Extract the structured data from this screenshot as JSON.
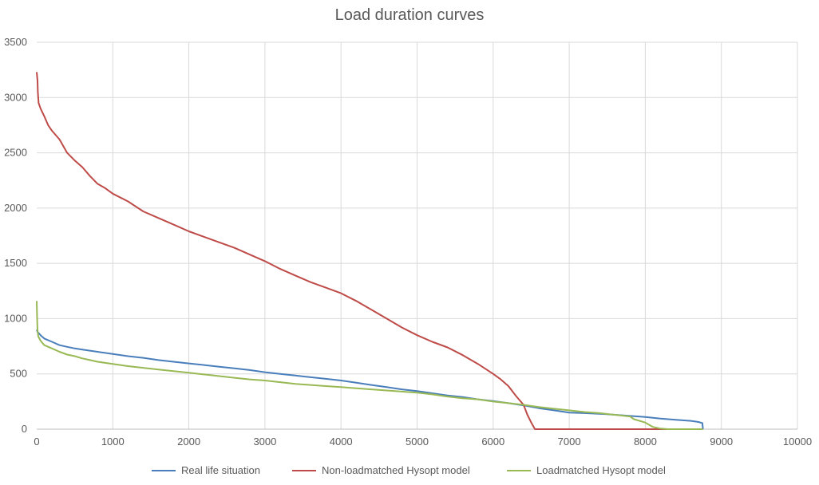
{
  "chart_data": {
    "type": "line",
    "title": "Load duration curves",
    "xlabel": "",
    "ylabel": "",
    "xlim": [
      0,
      10000
    ],
    "ylim": [
      0,
      3500
    ],
    "x_ticks": [
      0,
      1000,
      2000,
      3000,
      4000,
      5000,
      6000,
      7000,
      8000,
      9000,
      10000
    ],
    "y_ticks": [
      0,
      500,
      1000,
      1500,
      2000,
      2500,
      3000,
      3500
    ],
    "grid": true,
    "legend_position": "bottom",
    "series": [
      {
        "name": "Real life situation",
        "color": "#4a7ebb",
        "points": [
          [
            0,
            900
          ],
          [
            10,
            880
          ],
          [
            50,
            850
          ],
          [
            100,
            820
          ],
          [
            200,
            790
          ],
          [
            300,
            760
          ],
          [
            400,
            745
          ],
          [
            500,
            730
          ],
          [
            600,
            720
          ],
          [
            700,
            710
          ],
          [
            800,
            700
          ],
          [
            900,
            690
          ],
          [
            1000,
            680
          ],
          [
            1200,
            660
          ],
          [
            1400,
            645
          ],
          [
            1600,
            625
          ],
          [
            1800,
            610
          ],
          [
            2000,
            595
          ],
          [
            2200,
            580
          ],
          [
            2400,
            565
          ],
          [
            2600,
            550
          ],
          [
            2800,
            535
          ],
          [
            3000,
            515
          ],
          [
            3200,
            500
          ],
          [
            3400,
            485
          ],
          [
            3600,
            470
          ],
          [
            3800,
            455
          ],
          [
            4000,
            440
          ],
          [
            4200,
            420
          ],
          [
            4400,
            400
          ],
          [
            4600,
            380
          ],
          [
            4800,
            360
          ],
          [
            5000,
            345
          ],
          [
            5200,
            325
          ],
          [
            5400,
            305
          ],
          [
            5600,
            290
          ],
          [
            5800,
            270
          ],
          [
            6000,
            255
          ],
          [
            6200,
            235
          ],
          [
            6400,
            215
          ],
          [
            6600,
            190
          ],
          [
            6800,
            170
          ],
          [
            7000,
            150
          ],
          [
            7200,
            145
          ],
          [
            7500,
            135
          ],
          [
            7800,
            120
          ],
          [
            8000,
            110
          ],
          [
            8200,
            95
          ],
          [
            8400,
            85
          ],
          [
            8600,
            75
          ],
          [
            8700,
            65
          ],
          [
            8750,
            55
          ],
          [
            8758,
            0
          ]
        ]
      },
      {
        "name": "Non-loadmatched Hysopt model",
        "color": "#be4b48",
        "points": [
          [
            0,
            3230
          ],
          [
            10,
            3150
          ],
          [
            15,
            3050
          ],
          [
            25,
            2950
          ],
          [
            50,
            2900
          ],
          [
            100,
            2830
          ],
          [
            150,
            2750
          ],
          [
            200,
            2700
          ],
          [
            300,
            2620
          ],
          [
            400,
            2500
          ],
          [
            500,
            2430
          ],
          [
            600,
            2370
          ],
          [
            700,
            2290
          ],
          [
            800,
            2220
          ],
          [
            900,
            2180
          ],
          [
            1000,
            2130
          ],
          [
            1200,
            2060
          ],
          [
            1400,
            1970
          ],
          [
            1600,
            1910
          ],
          [
            1800,
            1850
          ],
          [
            2000,
            1790
          ],
          [
            2200,
            1740
          ],
          [
            2400,
            1690
          ],
          [
            2600,
            1640
          ],
          [
            2800,
            1580
          ],
          [
            3000,
            1520
          ],
          [
            3200,
            1450
          ],
          [
            3400,
            1390
          ],
          [
            3600,
            1330
          ],
          [
            3800,
            1280
          ],
          [
            4000,
            1230
          ],
          [
            4200,
            1160
          ],
          [
            4400,
            1080
          ],
          [
            4600,
            1000
          ],
          [
            4800,
            920
          ],
          [
            5000,
            850
          ],
          [
            5200,
            790
          ],
          [
            5400,
            740
          ],
          [
            5600,
            670
          ],
          [
            5800,
            590
          ],
          [
            6000,
            500
          ],
          [
            6100,
            450
          ],
          [
            6200,
            390
          ],
          [
            6300,
            300
          ],
          [
            6400,
            220
          ],
          [
            6450,
            130
          ],
          [
            6500,
            60
          ],
          [
            6550,
            0
          ],
          [
            8758,
            0
          ]
        ]
      },
      {
        "name": "Loadmatched Hysopt model",
        "color": "#98b954",
        "points": [
          [
            0,
            1160
          ],
          [
            5,
            1000
          ],
          [
            10,
            900
          ],
          [
            20,
            840
          ],
          [
            50,
            800
          ],
          [
            100,
            760
          ],
          [
            200,
            730
          ],
          [
            300,
            700
          ],
          [
            400,
            675
          ],
          [
            500,
            660
          ],
          [
            600,
            640
          ],
          [
            700,
            625
          ],
          [
            800,
            610
          ],
          [
            1000,
            590
          ],
          [
            1200,
            570
          ],
          [
            1400,
            555
          ],
          [
            1600,
            540
          ],
          [
            1800,
            525
          ],
          [
            2000,
            510
          ],
          [
            2200,
            495
          ],
          [
            2400,
            480
          ],
          [
            2600,
            465
          ],
          [
            2800,
            450
          ],
          [
            3000,
            440
          ],
          [
            3200,
            425
          ],
          [
            3400,
            410
          ],
          [
            3600,
            400
          ],
          [
            3800,
            390
          ],
          [
            4000,
            380
          ],
          [
            4200,
            370
          ],
          [
            4400,
            360
          ],
          [
            4600,
            350
          ],
          [
            4800,
            340
          ],
          [
            5000,
            330
          ],
          [
            5200,
            315
          ],
          [
            5400,
            295
          ],
          [
            5600,
            280
          ],
          [
            5800,
            270
          ],
          [
            6000,
            250
          ],
          [
            6200,
            235
          ],
          [
            6400,
            220
          ],
          [
            6600,
            200
          ],
          [
            6800,
            185
          ],
          [
            7000,
            170
          ],
          [
            7200,
            155
          ],
          [
            7400,
            145
          ],
          [
            7600,
            130
          ],
          [
            7800,
            115
          ],
          [
            7850,
            90
          ],
          [
            8000,
            60
          ],
          [
            8100,
            20
          ],
          [
            8200,
            5
          ],
          [
            8300,
            0
          ],
          [
            8758,
            0
          ]
        ]
      }
    ]
  }
}
